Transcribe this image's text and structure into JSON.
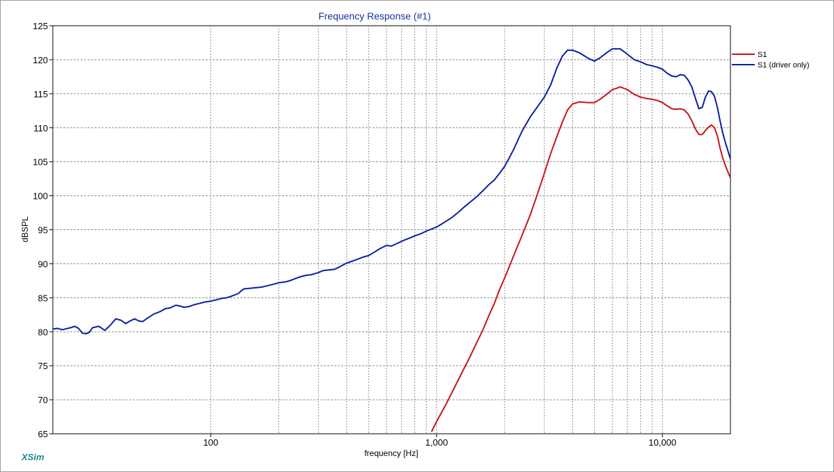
{
  "app": {
    "name": "XSim"
  },
  "chart_data": {
    "type": "line",
    "title": "Frequency Response (#1)",
    "xlabel": "frequency [Hz]",
    "ylabel": "dBSPL",
    "x_scale": "log",
    "xlim": [
      20,
      20000
    ],
    "ylim": [
      65,
      125
    ],
    "yticks": [
      65,
      70,
      75,
      80,
      85,
      90,
      95,
      100,
      105,
      110,
      115,
      120,
      125
    ],
    "ytick_labels": [
      "65",
      "70",
      "75",
      "80",
      "85",
      "90",
      "95",
      "100",
      "105",
      "110",
      "115",
      "120",
      "125"
    ],
    "xticks_labeled": [
      100,
      1000,
      10000
    ],
    "xtick_labels": [
      "100",
      "1,000",
      "10,000"
    ],
    "grid": true,
    "legend_position": "right",
    "series": [
      {
        "name": "S1",
        "color": "#c81414",
        "points": [
          [
            950,
            65.3
          ],
          [
            1000,
            66.8
          ],
          [
            1100,
            69.3
          ],
          [
            1200,
            71.8
          ],
          [
            1300,
            74.1
          ],
          [
            1400,
            76.2
          ],
          [
            1500,
            78.3
          ],
          [
            1600,
            80.2
          ],
          [
            1700,
            82.3
          ],
          [
            1800,
            84.1
          ],
          [
            1900,
            86.2
          ],
          [
            2000,
            87.9
          ],
          [
            2100,
            89.6
          ],
          [
            2200,
            91.3
          ],
          [
            2400,
            94.3
          ],
          [
            2600,
            97.2
          ],
          [
            2800,
            100.3
          ],
          [
            3000,
            103.3
          ],
          [
            3200,
            106.2
          ],
          [
            3400,
            108.6
          ],
          [
            3600,
            110.8
          ],
          [
            3800,
            112.6
          ],
          [
            4000,
            113.5
          ],
          [
            4300,
            113.8
          ],
          [
            4700,
            113.7
          ],
          [
            5000,
            113.7
          ],
          [
            5300,
            114.2
          ],
          [
            5600,
            114.8
          ],
          [
            6000,
            115.6
          ],
          [
            6500,
            116.0
          ],
          [
            7000,
            115.6
          ],
          [
            7500,
            114.9
          ],
          [
            8000,
            114.5
          ],
          [
            8500,
            114.3
          ],
          [
            9000,
            114.2
          ],
          [
            9500,
            114.0
          ],
          [
            10000,
            113.7
          ],
          [
            10500,
            113.2
          ],
          [
            11000,
            112.8
          ],
          [
            11500,
            112.7
          ],
          [
            12000,
            112.8
          ],
          [
            12500,
            112.6
          ],
          [
            13000,
            112.0
          ],
          [
            13500,
            111.0
          ],
          [
            14000,
            109.8
          ],
          [
            14500,
            109.0
          ],
          [
            15000,
            109.0
          ],
          [
            15500,
            109.6
          ],
          [
            16000,
            110.1
          ],
          [
            16500,
            110.4
          ],
          [
            17000,
            110.0
          ],
          [
            17500,
            108.8
          ],
          [
            18000,
            107.0
          ],
          [
            18500,
            105.5
          ],
          [
            19000,
            104.4
          ],
          [
            20000,
            102.6
          ]
        ]
      },
      {
        "name": "S1 (driver only)",
        "color": "#0a1ea0",
        "points": [
          [
            20,
            80.4
          ],
          [
            21,
            80.5
          ],
          [
            22,
            80.3
          ],
          [
            24,
            80.6
          ],
          [
            25,
            80.8
          ],
          [
            26,
            80.5
          ],
          [
            27,
            79.8
          ],
          [
            28,
            79.7
          ],
          [
            29,
            79.9
          ],
          [
            30,
            80.6
          ],
          [
            32,
            80.8
          ],
          [
            34,
            80.2
          ],
          [
            36,
            81.0
          ],
          [
            38,
            81.9
          ],
          [
            40,
            81.7
          ],
          [
            42,
            81.2
          ],
          [
            44,
            81.6
          ],
          [
            46,
            81.9
          ],
          [
            48,
            81.6
          ],
          [
            50,
            81.5
          ],
          [
            53,
            82.1
          ],
          [
            56,
            82.6
          ],
          [
            60,
            83.0
          ],
          [
            63,
            83.4
          ],
          [
            66,
            83.5
          ],
          [
            70,
            83.9
          ],
          [
            73,
            83.8
          ],
          [
            76,
            83.6
          ],
          [
            80,
            83.7
          ],
          [
            85,
            84.0
          ],
          [
            90,
            84.2
          ],
          [
            95,
            84.4
          ],
          [
            100,
            84.5
          ],
          [
            106,
            84.7
          ],
          [
            112,
            84.9
          ],
          [
            118,
            85.0
          ],
          [
            125,
            85.3
          ],
          [
            132,
            85.6
          ],
          [
            140,
            86.3
          ],
          [
            150,
            86.4
          ],
          [
            160,
            86.5
          ],
          [
            170,
            86.6
          ],
          [
            180,
            86.8
          ],
          [
            190,
            87.0
          ],
          [
            200,
            87.2
          ],
          [
            212,
            87.3
          ],
          [
            224,
            87.5
          ],
          [
            236,
            87.8
          ],
          [
            250,
            88.1
          ],
          [
            265,
            88.3
          ],
          [
            280,
            88.4
          ],
          [
            300,
            88.7
          ],
          [
            315,
            89.0
          ],
          [
            335,
            89.1
          ],
          [
            355,
            89.2
          ],
          [
            375,
            89.6
          ],
          [
            400,
            90.1
          ],
          [
            425,
            90.4
          ],
          [
            450,
            90.7
          ],
          [
            475,
            91.0
          ],
          [
            500,
            91.2
          ],
          [
            530,
            91.7
          ],
          [
            560,
            92.2
          ],
          [
            600,
            92.7
          ],
          [
            630,
            92.6
          ],
          [
            670,
            93.0
          ],
          [
            710,
            93.4
          ],
          [
            750,
            93.7
          ],
          [
            800,
            94.1
          ],
          [
            850,
            94.4
          ],
          [
            900,
            94.8
          ],
          [
            950,
            95.1
          ],
          [
            1000,
            95.4
          ],
          [
            1060,
            95.9
          ],
          [
            1120,
            96.4
          ],
          [
            1180,
            96.9
          ],
          [
            1250,
            97.6
          ],
          [
            1320,
            98.3
          ],
          [
            1400,
            99.0
          ],
          [
            1500,
            99.8
          ],
          [
            1600,
            100.7
          ],
          [
            1700,
            101.6
          ],
          [
            1800,
            102.3
          ],
          [
            1900,
            103.3
          ],
          [
            2000,
            104.3
          ],
          [
            2100,
            105.6
          ],
          [
            2200,
            106.9
          ],
          [
            2300,
            108.3
          ],
          [
            2400,
            109.6
          ],
          [
            2600,
            111.6
          ],
          [
            2800,
            113.1
          ],
          [
            3000,
            114.5
          ],
          [
            3200,
            116.3
          ],
          [
            3400,
            118.7
          ],
          [
            3600,
            120.5
          ],
          [
            3800,
            121.4
          ],
          [
            4000,
            121.4
          ],
          [
            4300,
            121.0
          ],
          [
            4700,
            120.2
          ],
          [
            5000,
            119.8
          ],
          [
            5300,
            120.3
          ],
          [
            5700,
            121.1
          ],
          [
            6000,
            121.6
          ],
          [
            6500,
            121.6
          ],
          [
            7000,
            120.8
          ],
          [
            7500,
            120.0
          ],
          [
            8000,
            119.7
          ],
          [
            8500,
            119.3
          ],
          [
            9000,
            119.1
          ],
          [
            9500,
            118.9
          ],
          [
            10000,
            118.6
          ],
          [
            10500,
            118.0
          ],
          [
            11000,
            117.6
          ],
          [
            11500,
            117.5
          ],
          [
            12000,
            117.8
          ],
          [
            12500,
            117.7
          ],
          [
            13000,
            117.0
          ],
          [
            13500,
            116.0
          ],
          [
            14000,
            114.3
          ],
          [
            14500,
            112.8
          ],
          [
            15000,
            113.0
          ],
          [
            15500,
            114.5
          ],
          [
            16000,
            115.4
          ],
          [
            16500,
            115.3
          ],
          [
            17000,
            114.6
          ],
          [
            17500,
            113.0
          ],
          [
            18000,
            111.0
          ],
          [
            18500,
            109.2
          ],
          [
            19000,
            107.8
          ],
          [
            20000,
            105.4
          ]
        ]
      }
    ]
  }
}
